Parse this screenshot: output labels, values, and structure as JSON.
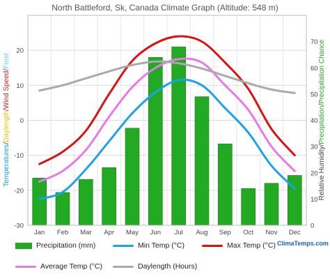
{
  "chart_data": {
    "type": "bar+line",
    "title": "North Battleford, Sk, Canada Climate Graph (Altitude: 548 m)",
    "categories": [
      "Jan",
      "Feb",
      "Mar",
      "Apr",
      "May",
      "Jun",
      "Jul",
      "Aug",
      "Sep",
      "Oct",
      "Nov",
      "Dec"
    ],
    "left_axis": {
      "label_parts": [
        {
          "text": "Temperatures",
          "color": "#1a9be0"
        },
        {
          "text": "/",
          "color": "#444444"
        },
        {
          "text": "Daylength",
          "color": "#f2c200"
        },
        {
          "text": "/",
          "color": "#444444"
        },
        {
          "text": "Wind Speed",
          "color": "#e02020"
        },
        {
          "text": "/",
          "color": "#444444"
        },
        {
          "text": "Frost",
          "color": "#66c8f0"
        }
      ],
      "ylim": [
        -30,
        30
      ],
      "ticks": [
        -30,
        -20,
        -10,
        0,
        10,
        20
      ]
    },
    "right_axis": {
      "label_parts": [
        {
          "text": "Relative Humidity",
          "color": "#444444"
        },
        {
          "text": "/",
          "color": "#444444"
        },
        {
          "text": "Precipitation",
          "color": "#22a822"
        },
        {
          "text": "/",
          "color": "#444444"
        },
        {
          "text": "Precipitation Chance",
          "color": "#22a822"
        }
      ],
      "ylim": [
        0,
        80
      ],
      "ticks": [
        0,
        10,
        20,
        30,
        40,
        50,
        60,
        70
      ]
    },
    "grid": true,
    "series": [
      {
        "name": "Precipitation (mm)",
        "kind": "bar",
        "axis": "right",
        "color": "#22aa22",
        "values": [
          18,
          12.5,
          17.5,
          22,
          37,
          64,
          68,
          49,
          31,
          14,
          16,
          19
        ]
      },
      {
        "name": "Min Temp (°C)",
        "kind": "line",
        "axis": "left",
        "color": "#1aa3e8",
        "values": [
          -22.5,
          -20.5,
          -14,
          -6,
          2,
          8,
          11.5,
          10,
          3.5,
          -3.5,
          -13,
          -19.5
        ]
      },
      {
        "name": "Max Temp (°C)",
        "kind": "line",
        "axis": "left",
        "color": "#dd1111",
        "values": [
          -12.5,
          -9,
          -3,
          7.5,
          17,
          22,
          24,
          22.5,
          16.5,
          9,
          -2.5,
          -10
        ]
      },
      {
        "name": "Average Temp (°C)",
        "kind": "line",
        "axis": "left",
        "color": "#e879e8",
        "values": [
          -17.5,
          -14.5,
          -8.5,
          1,
          9.5,
          15,
          17.5,
          16.5,
          10,
          3,
          -7.5,
          -14.5
        ]
      },
      {
        "name": "Daylength (Hours)",
        "kind": "line",
        "axis": "left",
        "color": "#aaaaaa",
        "values": [
          8.5,
          10,
          12,
          14,
          15.8,
          16.8,
          16.3,
          14.8,
          12.7,
          10.6,
          8.8,
          7.8
        ]
      }
    ],
    "legend_position": "bottom"
  },
  "brand": "ClimaTemps.com"
}
